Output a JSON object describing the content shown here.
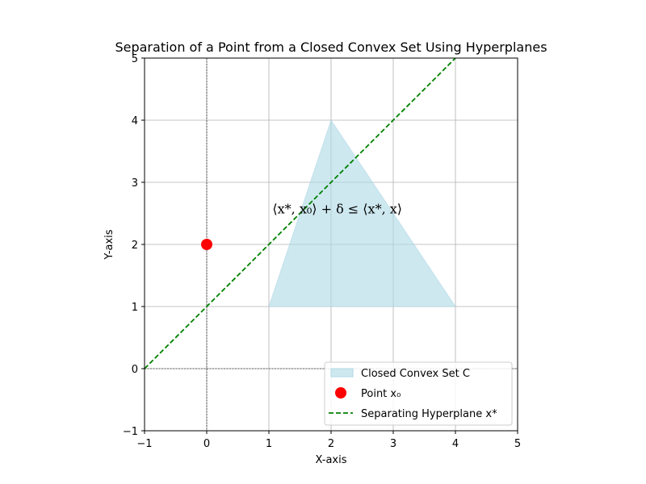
{
  "chart_data": {
    "type": "scatter",
    "title": "Separation of a Point from a Closed Convex Set Using Hyperplanes",
    "xlabel": "X-axis",
    "ylabel": "Y-axis",
    "xlim": [
      -1,
      5
    ],
    "ylim": [
      -1,
      5
    ],
    "xticks": [
      -1,
      0,
      1,
      2,
      3,
      4,
      5
    ],
    "yticks": [
      -1,
      0,
      1,
      2,
      3,
      4,
      5
    ],
    "xtick_labels": [
      "−1",
      "0",
      "1",
      "2",
      "3",
      "4",
      "5"
    ],
    "ytick_labels": [
      "−1",
      "0",
      "1",
      "2",
      "3",
      "4",
      "5"
    ],
    "grid": true,
    "legend_placement": "lower-right",
    "series": [
      {
        "name": "Closed Convex Set C",
        "kind": "polygon",
        "color": "#add8e6",
        "points": [
          [
            1,
            1
          ],
          [
            2,
            4
          ],
          [
            4,
            1
          ]
        ]
      },
      {
        "name": "Point x₀",
        "kind": "point",
        "color": "#ff0000",
        "points": [
          [
            0,
            2
          ]
        ]
      },
      {
        "name": "Separating Hyperplane x*",
        "kind": "dashed-line",
        "color": "#008000",
        "points": [
          [
            -1,
            0
          ],
          [
            4,
            5
          ]
        ]
      }
    ],
    "reference_lines": [
      {
        "orientation": "horizontal",
        "value": 0,
        "color": "#000000"
      },
      {
        "orientation": "vertical",
        "value": 0,
        "color": "#000000"
      }
    ],
    "annotation": {
      "text": "⟨x*, x₀⟩ + δ ≤ ⟨x*, x⟩",
      "x": 2.1,
      "y": 2.5
    }
  }
}
